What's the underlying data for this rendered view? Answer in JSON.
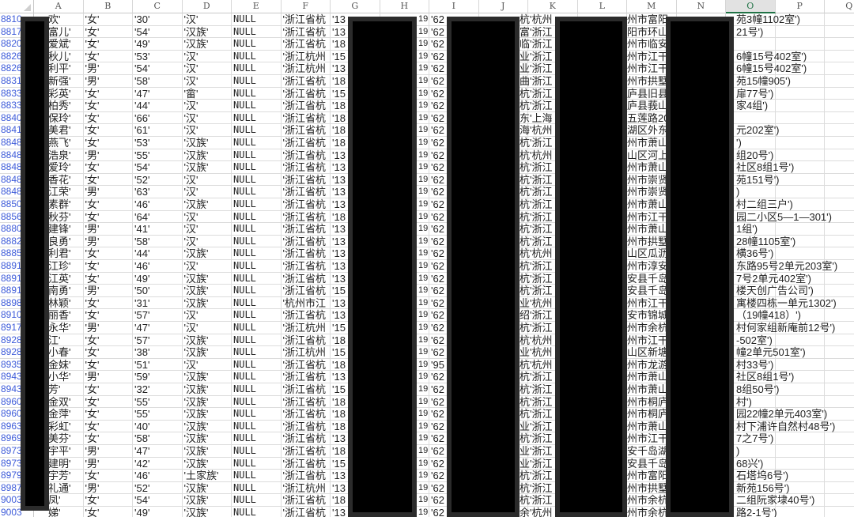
{
  "columns": [
    "A",
    "B",
    "C",
    "D",
    "E",
    "F",
    "G",
    "H",
    "I",
    "J",
    "K",
    "L",
    "M",
    "N",
    "O",
    "P",
    "Q"
  ],
  "selected_column": "O",
  "colors": {
    "row_number": "#3d5bd9",
    "selection": "#217346",
    "redaction": "#000000"
  },
  "rows": [
    {
      "num": "8810",
      "a": "欢'",
      "b": "'女'",
      "c": "'30'",
      "d": "'汉'",
      "e": "NULL",
      "f": "'浙江省杭",
      "g": "'13",
      "h": "19",
      "i": "'62",
      "k": "杭'杭州",
      "m": "州市富阳",
      "o": "苑3幢1102室')"
    },
    {
      "num": "8817",
      "a": "富儿'",
      "b": "'女'",
      "c": "'54'",
      "d": "'汉族'",
      "e": "NULL",
      "f": "'浙江省杭",
      "g": "'13",
      "h": "19",
      "i": "'62",
      "k": "富'浙江",
      "m": "阳市环山",
      "o": "21号')"
    },
    {
      "num": "8820",
      "a": "爱斌'",
      "b": "'女'",
      "c": "'49'",
      "d": "'汉族'",
      "e": "NULL",
      "f": "'浙江省杭",
      "g": "'18",
      "h": "19",
      "i": "'62",
      "k": "临'浙江",
      "m": "州市临安",
      "o": ""
    },
    {
      "num": "8826",
      "a": "秋儿'",
      "b": "'女'",
      "c": "'53'",
      "d": "'汉'",
      "e": "NULL",
      "f": "'浙江杭州",
      "g": "'15",
      "h": "19",
      "i": "'62",
      "k": "业'浙江",
      "m": "州市江干",
      "o": "6幢15号402室')"
    },
    {
      "num": "8826",
      "a": "利平'",
      "b": "'男'",
      "c": "'54'",
      "d": "'汉'",
      "e": "NULL",
      "f": "'浙江杭州",
      "g": "'13",
      "h": "19",
      "i": "'62",
      "k": "业'浙江",
      "m": "州市江干",
      "o": "6幢15号402室')"
    },
    {
      "num": "8831",
      "a": "新强'",
      "b": "'男'",
      "c": "'58'",
      "d": "'汉'",
      "e": "NULL",
      "f": "'浙江省杭",
      "g": "'18",
      "h": "19",
      "i": "'62",
      "k": "曲'浙江",
      "m": "州市拱墅",
      "o": "苑15幢905')"
    },
    {
      "num": "8833",
      "a": "彩英'",
      "b": "'女'",
      "c": "'47'",
      "d": "'畲'",
      "e": "NULL",
      "f": "'浙江省杭",
      "g": "'15",
      "h": "19",
      "i": "'62",
      "k": "杭'浙江",
      "m": "庐县旧县",
      "o": "扉77号')"
    },
    {
      "num": "8833",
      "a": "柏秀'",
      "b": "'女'",
      "c": "'44'",
      "d": "'汉'",
      "e": "NULL",
      "f": "'浙江省杭",
      "g": "'18",
      "h": "19",
      "i": "'62",
      "k": "杭'浙江",
      "m": "庐县莪山",
      "o": "家4组')"
    },
    {
      "num": "8840",
      "a": "保玲'",
      "b": "'女'",
      "c": "'66'",
      "d": "'汉'",
      "e": "NULL",
      "f": "'浙江省杭",
      "g": "'18",
      "h": "19",
      "i": "'62",
      "k": "东'上海",
      "m": "五莲路20",
      "o": ""
    },
    {
      "num": "8841",
      "a": "美君'",
      "b": "'女'",
      "c": "'61'",
      "d": "'汉'",
      "e": "NULL",
      "f": "'浙江省杭",
      "g": "'18",
      "h": "19",
      "i": "'62",
      "k": "海'杭州",
      "m": "湖区外东",
      "o": "元202室')"
    },
    {
      "num": "8848",
      "a": "燕飞'",
      "b": "'女'",
      "c": "'53'",
      "d": "'汉族'",
      "e": "NULL",
      "f": "'浙江省杭",
      "g": "'18",
      "h": "19",
      "i": "'62",
      "k": "杭'浙江",
      "m": "州市萧山",
      "o": "')"
    },
    {
      "num": "8848",
      "a": "浩泉'",
      "b": "'男'",
      "c": "'55'",
      "d": "'汉族'",
      "e": "NULL",
      "f": "'浙江省杭",
      "g": "'13",
      "h": "19",
      "i": "'62",
      "k": "杭'杭州",
      "m": "山区河上",
      "o": "组20号')"
    },
    {
      "num": "8848",
      "a": "爱玲'",
      "b": "'女'",
      "c": "'54'",
      "d": "'汉族'",
      "e": "NULL",
      "f": "'浙江省杭",
      "g": "'13",
      "h": "19",
      "i": "'62",
      "k": "杭'浙江",
      "m": "州市萧山",
      "o": "社区8组1号')"
    },
    {
      "num": "8848",
      "a": "香花'",
      "b": "'女'",
      "c": "'52'",
      "d": "'汉'",
      "e": "NULL",
      "f": "'浙江省杭",
      "g": "'13",
      "h": "19",
      "i": "'62",
      "k": "杭'浙江",
      "m": "州市崇贤",
      "o": "苑151号')"
    },
    {
      "num": "8848",
      "a": "江荣'",
      "b": "'男'",
      "c": "'63'",
      "d": "'汉'",
      "e": "NULL",
      "f": "'浙江省杭",
      "g": "'13",
      "h": "19",
      "i": "'62",
      "k": "杭'浙江",
      "m": "州市崇贤",
      "o": ")"
    },
    {
      "num": "8850",
      "a": "素群'",
      "b": "'女'",
      "c": "'46'",
      "d": "'汉族'",
      "e": "NULL",
      "f": "'浙江省杭",
      "g": "'13",
      "h": "19",
      "i": "'62",
      "k": "杭'浙江",
      "m": "州市萧山",
      "o": "村二组三户')"
    },
    {
      "num": "8856",
      "a": "秋芬'",
      "b": "'女'",
      "c": "'64'",
      "d": "'汉'",
      "e": "NULL",
      "f": "'浙江省杭",
      "g": "'18",
      "h": "19",
      "i": "'62",
      "k": "杭'浙江",
      "m": "州市江干",
      "o": "园二小区5—1—301')"
    },
    {
      "num": "8880",
      "a": "建锋'",
      "b": "'男'",
      "c": "'41'",
      "d": "'汉'",
      "e": "NULL",
      "f": "'浙江省杭",
      "g": "'13",
      "h": "19",
      "i": "'62",
      "k": "杭'浙江",
      "m": "州市萧山",
      "o": "1组')"
    },
    {
      "num": "8882",
      "a": "良勇'",
      "b": "'男'",
      "c": "'58'",
      "d": "'汉'",
      "e": "NULL",
      "f": "'浙江省杭",
      "g": "'13",
      "h": "19",
      "i": "'62",
      "k": "杭'浙江",
      "m": "州市拱墅",
      "o": "28幢1105室')"
    },
    {
      "num": "8885",
      "a": "利君'",
      "b": "'女'",
      "c": "'44'",
      "d": "'汉族'",
      "e": "NULL",
      "f": "'浙江省杭",
      "g": "'13",
      "h": "19",
      "i": "'62",
      "k": "杭'杭州",
      "m": "山区瓜沥",
      "o": "横36号')"
    },
    {
      "num": "8891",
      "a": "江珍'",
      "b": "'女'",
      "c": "'46'",
      "d": "'汉'",
      "e": "NULL",
      "f": "'浙江省杭",
      "g": "'13",
      "h": "19",
      "i": "'62",
      "k": "杭'浙江",
      "m": "州市淳安",
      "o": "东路95号2单元203室')"
    },
    {
      "num": "8891",
      "a": "江英'",
      "b": "'女'",
      "c": "'49'",
      "d": "'汉族'",
      "e": "NULL",
      "f": "'浙江省杭",
      "g": "'13",
      "h": "19",
      "i": "'62",
      "k": "杭'浙江",
      "m": "安县千岛",
      "o": "7号2单元402室')"
    },
    {
      "num": "8891",
      "a": "南勇'",
      "b": "'男'",
      "c": "'50'",
      "d": "'汉族'",
      "e": "NULL",
      "f": "'浙江省杭",
      "g": "'15",
      "h": "19",
      "i": "'62",
      "k": "杭'浙江",
      "m": "安县千岛",
      "o": "楼天创广告公司')"
    },
    {
      "num": "8898",
      "a": "林颖'",
      "b": "'女'",
      "c": "'31'",
      "d": "'汉族'",
      "e": "NULL",
      "f": "'杭州市江",
      "g": "'13",
      "h": "19",
      "i": "'62",
      "k": "业'杭州",
      "m": "州市江干",
      "o": "寓楼四栋一单元1302')"
    },
    {
      "num": "8910",
      "a": "丽香'",
      "b": "'女'",
      "c": "'57'",
      "d": "'汉'",
      "e": "NULL",
      "f": "'浙江省杭",
      "g": "'13",
      "h": "19",
      "i": "'62",
      "k": "绍'浙江",
      "m": "安市锦城",
      "o": "（19幢418）')"
    },
    {
      "num": "8917",
      "a": "永华'",
      "b": "'男'",
      "c": "'47'",
      "d": "'汉'",
      "e": "NULL",
      "f": "'浙江杭州",
      "g": "'15",
      "h": "19",
      "i": "'62",
      "k": "杭'浙江",
      "m": "州市余杭",
      "o": "村何家组新庵前12号')"
    },
    {
      "num": "8928",
      "a": "江'",
      "b": "'女'",
      "c": "'57'",
      "d": "'汉族'",
      "e": "NULL",
      "f": "'浙江省杭",
      "g": "'18",
      "h": "19",
      "i": "'62",
      "k": "杭'杭州",
      "m": "州市江干",
      "o": "-502室')"
    },
    {
      "num": "8928",
      "a": "小春'",
      "b": "'女'",
      "c": "'38'",
      "d": "'汉族'",
      "e": "NULL",
      "f": "'浙江杭州",
      "g": "'15",
      "h": "19",
      "i": "'62",
      "k": "业'杭州",
      "m": "山区新塘",
      "o": "幢2单元501室')"
    },
    {
      "num": "8935",
      "a": "金妹'",
      "b": "'女'",
      "c": "'51'",
      "d": "'汉'",
      "e": "NULL",
      "f": "'浙江省杭",
      "g": "'18",
      "h": "19",
      "i": "'95",
      "k": "杭'杭州",
      "m": "州市龙游",
      "o": "村33号')"
    },
    {
      "num": "8943",
      "a": "小华'",
      "b": "'男'",
      "c": "'59'",
      "d": "'汉族'",
      "e": "NULL",
      "f": "'浙江省杭",
      "g": "'13",
      "h": "19",
      "i": "'62",
      "k": "杭'浙江",
      "m": "州市萧山",
      "o": "社区8组1号')"
    },
    {
      "num": "8943",
      "a": "芳'",
      "b": "'女'",
      "c": "'32'",
      "d": "'汉族'",
      "e": "NULL",
      "f": "'浙江省杭",
      "g": "'15",
      "h": "19",
      "i": "'62",
      "k": "杭'浙江",
      "m": "州市萧山",
      "o": "8组50号')"
    },
    {
      "num": "8960",
      "a": "金双'",
      "b": "'女'",
      "c": "'55'",
      "d": "'汉族'",
      "e": "NULL",
      "f": "'浙江省杭",
      "g": "'18",
      "h": "19",
      "i": "'62",
      "k": "杭'浙江",
      "m": "州市桐庐",
      "o": "村')"
    },
    {
      "num": "8960",
      "a": "金萍'",
      "b": "'女'",
      "c": "'55'",
      "d": "'汉族'",
      "e": "NULL",
      "f": "'浙江省杭",
      "g": "'18",
      "h": "19",
      "i": "'62",
      "k": "杭'浙江",
      "m": "州市桐庐",
      "o": "园22幢2单元403室')"
    },
    {
      "num": "8963",
      "a": "彩虹'",
      "b": "'女'",
      "c": "'40'",
      "d": "'汉族'",
      "e": "NULL",
      "f": "'浙江省杭",
      "g": "'18",
      "h": "19",
      "i": "'62",
      "k": "业'浙江",
      "m": "州市萧山",
      "o": "村下浦许自然村48号')"
    },
    {
      "num": "8969",
      "a": "美芬'",
      "b": "'女'",
      "c": "'58'",
      "d": "'汉族'",
      "e": "NULL",
      "f": "'浙江省杭",
      "g": "'13",
      "h": "19",
      "i": "'62",
      "k": "杭'浙江",
      "m": "州市江干",
      "o": "7之7号')"
    },
    {
      "num": "8973",
      "a": "宇平'",
      "b": "'男'",
      "c": "'47'",
      "d": "'汉族'",
      "e": "NULL",
      "f": "'浙江省杭",
      "g": "'18",
      "h": "19",
      "i": "'62",
      "k": "业'浙江",
      "m": "安千岛湖",
      "o": ")"
    },
    {
      "num": "8973",
      "a": "建明'",
      "b": "'男'",
      "c": "'42'",
      "d": "'汉族'",
      "e": "NULL",
      "f": "'浙江省杭",
      "g": "'15",
      "h": "19",
      "i": "'62",
      "k": "业'浙江",
      "m": "安县千岛",
      "o": "68兴')"
    },
    {
      "num": "8979",
      "a": "宇芳'",
      "b": "'女'",
      "c": "'46'",
      "d": "'土家族'",
      "e": "NULL",
      "f": "'浙江省杭",
      "g": "'13",
      "h": "19",
      "i": "'62",
      "k": "杭'浙江",
      "m": "州市富阳",
      "o": "石塔坞6号')"
    },
    {
      "num": "8987",
      "a": "礼通'",
      "b": "'男'",
      "c": "'52'",
      "d": "'汉族'",
      "e": "NULL",
      "f": "'浙江杭州",
      "g": "'13",
      "h": "19",
      "i": "'62",
      "k": "杭'浙江",
      "m": "州市拱墅",
      "o": "新苑156号')"
    },
    {
      "num": "9003",
      "a": "凤'",
      "b": "'女'",
      "c": "'54'",
      "d": "'汉族'",
      "e": "NULL",
      "f": "'浙江省杭",
      "g": "'18",
      "h": "19",
      "i": "'62",
      "k": "杭'浙江",
      "m": "州市余杭",
      "o": "二组阮家埭40号')"
    },
    {
      "num": "9003",
      "a": "娣'",
      "b": "'女'",
      "c": "'49'",
      "d": "'汉族'",
      "e": "NULL",
      "f": "'浙江省杭",
      "g": "'13",
      "h": "19",
      "i": "'62",
      "k": "余'杭州",
      "m": "州市余杭",
      "o": "路2-1号')"
    }
  ]
}
